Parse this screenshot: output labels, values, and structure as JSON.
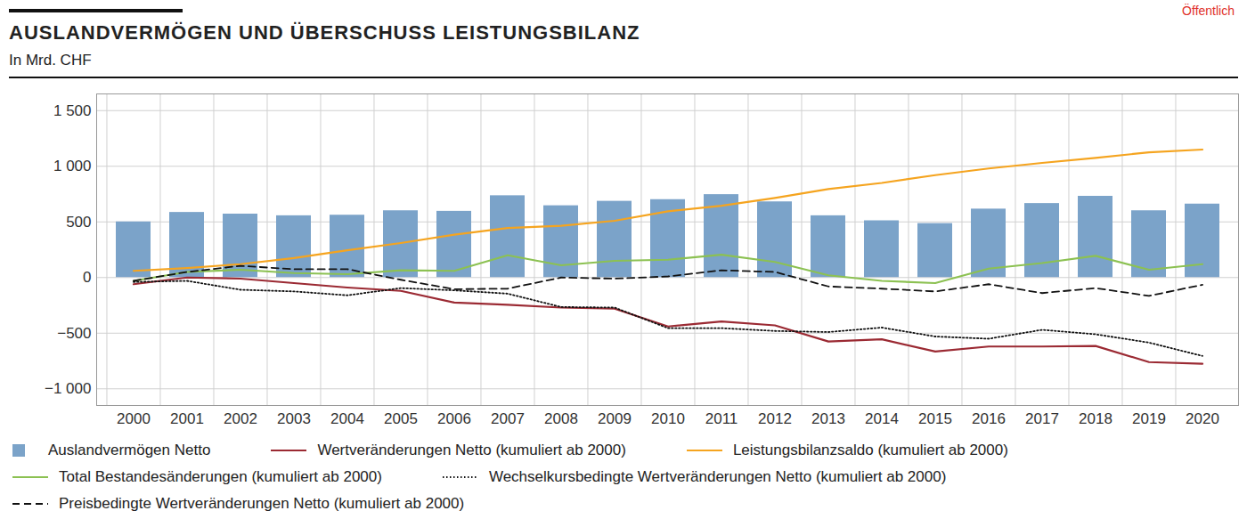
{
  "chart_data": {
    "type": "bar",
    "title": "AUSLANDVERMÖGEN UND ÜBERSCHUSS LEISTUNGSBILANZ",
    "subtitle": "In Mrd. CHF",
    "annotations": [
      "Öffentlich"
    ],
    "categories": [
      "2000",
      "2001",
      "2002",
      "2003",
      "2004",
      "2005",
      "2006",
      "2007",
      "2008",
      "2009",
      "2010",
      "2011",
      "2012",
      "2013",
      "2014",
      "2015",
      "2016",
      "2017",
      "2018",
      "2019",
      "2020"
    ],
    "series": [
      {
        "name": "Auslandvermögen Netto",
        "type": "bar",
        "color": "#7ba3c9",
        "values": [
          500,
          585,
          570,
          555,
          560,
          600,
          595,
          735,
          645,
          685,
          700,
          745,
          680,
          555,
          510,
          485,
          615,
          665,
          730,
          600,
          660
        ]
      },
      {
        "name": "Wertveränderungen Netto (kumuliert ab 2000)",
        "type": "line",
        "color": "#9b2a33",
        "line_style": "solid",
        "values": [
          -60,
          0,
          -10,
          -50,
          -90,
          -120,
          -225,
          -245,
          -270,
          -280,
          -440,
          -395,
          -430,
          -575,
          -555,
          -665,
          -620,
          -620,
          -615,
          -760,
          -775
        ]
      },
      {
        "name": "Leistungsbilanzsaldo (kumuliert ab 2000)",
        "type": "line",
        "color": "#f5a41f",
        "line_style": "solid",
        "values": [
          60,
          85,
          120,
          175,
          245,
          310,
          385,
          445,
          465,
          510,
          595,
          645,
          715,
          795,
          850,
          920,
          980,
          1030,
          1075,
          1125,
          1150
        ]
      },
      {
        "name": "Total Bestandesänderungen (kumuliert ab 2000)",
        "type": "line",
        "color": "#8cc152",
        "line_style": "solid",
        "values": [
          -30,
          50,
          70,
          40,
          30,
          65,
          60,
          200,
          110,
          150,
          160,
          205,
          140,
          20,
          -30,
          -50,
          80,
          130,
          195,
          70,
          120
        ]
      },
      {
        "name": "Wechselkursbedingte Wertveränderungen Netto (kumuliert ab 2000)",
        "type": "line",
        "color": "#111111",
        "line_style": "dotted",
        "values": [
          -40,
          -30,
          -110,
          -125,
          -160,
          -95,
          -115,
          -145,
          -265,
          -270,
          -455,
          -455,
          -480,
          -490,
          -450,
          -530,
          -550,
          -470,
          -510,
          -585,
          -705
        ]
      },
      {
        "name": "Preisbedingte Wertveränderungen Netto (kumuliert ab 2000)",
        "type": "line",
        "color": "#111111",
        "line_style": "dashed",
        "values": [
          -30,
          50,
          105,
          75,
          75,
          -20,
          -105,
          -100,
          0,
          -10,
          10,
          65,
          50,
          -80,
          -100,
          -125,
          -60,
          -140,
          -95,
          -165,
          -65
        ]
      }
    ],
    "ylim": [
      -1150,
      1650
    ],
    "yticks": [
      {
        "value": -1000,
        "label": "−1 000"
      },
      {
        "value": -500,
        "label": "−500"
      },
      0,
      500,
      {
        "value": 1000,
        "label": "1 000"
      },
      {
        "value": 1500,
        "label": "1 500"
      }
    ],
    "grid": true,
    "legend": "bottom"
  }
}
